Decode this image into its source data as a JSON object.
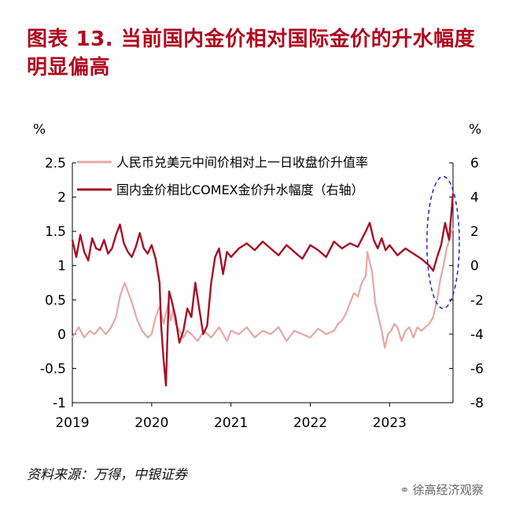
{
  "title": "图表 13. 当前国内金价相对国际金价的升水幅度明显偏高",
  "source": "资料来源：万得，中银证券",
  "watermark": "徐高经济观察",
  "colors": {
    "title": "#b0071f",
    "left_series": "#e9a6a6",
    "right_series": "#a50f26",
    "highlight": "#1f1fd0"
  },
  "chart_data": {
    "type": "line",
    "y_left": {
      "label": "%",
      "range": [
        -1,
        2.5
      ],
      "ticks": [
        "-1",
        "-0.5",
        "0",
        "0.5",
        "1",
        "1.5",
        "2",
        "2.5"
      ]
    },
    "y_right": {
      "label": "%",
      "range": [
        -8,
        6
      ],
      "ticks": [
        "-8",
        "-6",
        "-4",
        "-2",
        "0",
        "2",
        "4",
        "6"
      ]
    },
    "x": {
      "range": [
        2019,
        2023.8
      ],
      "ticks": [
        "2019",
        "2020",
        "2021",
        "2022",
        "2023"
      ]
    },
    "highlight_ellipse": {
      "x_range": [
        2023.55,
        2023.8
      ],
      "y_right_range": [
        -2.5,
        5.2
      ]
    },
    "series": [
      {
        "name": "人民币兑美元中间价相对上一日收盘价升值率",
        "axis": "left",
        "x": [
          2019.0,
          2019.08,
          2019.15,
          2019.22,
          2019.28,
          2019.35,
          2019.42,
          2019.48,
          2019.55,
          2019.6,
          2019.63,
          2019.66,
          2019.7,
          2019.74,
          2019.78,
          2019.82,
          2019.88,
          2019.95,
          2020.0,
          2020.05,
          2020.1,
          2020.15,
          2020.18,
          2020.21,
          2020.24,
          2020.27,
          2020.3,
          2020.35,
          2020.4,
          2020.45,
          2020.5,
          2020.58,
          2020.66,
          2020.75,
          2020.85,
          2020.95,
          2021.0,
          2021.1,
          2021.2,
          2021.3,
          2021.4,
          2021.5,
          2021.6,
          2021.7,
          2021.8,
          2021.9,
          2022.0,
          2022.1,
          2022.2,
          2022.3,
          2022.35,
          2022.4,
          2022.45,
          2022.5,
          2022.55,
          2022.6,
          2022.65,
          2022.7,
          2022.72,
          2022.75,
          2022.78,
          2022.82,
          2022.86,
          2022.9,
          2022.94,
          2022.98,
          2023.02,
          2023.06,
          2023.1,
          2023.15,
          2023.2,
          2023.25,
          2023.3,
          2023.35,
          2023.4,
          2023.45,
          2023.5,
          2023.55,
          2023.6,
          2023.64,
          2023.68,
          2023.72,
          2023.76,
          2023.8
        ],
        "y": [
          -0.05,
          0.1,
          -0.05,
          0.05,
          0.0,
          0.1,
          0.0,
          0.08,
          0.25,
          0.55,
          0.65,
          0.75,
          0.62,
          0.5,
          0.35,
          0.2,
          0.05,
          -0.05,
          0.0,
          0.25,
          0.4,
          0.15,
          0.3,
          0.45,
          0.2,
          0.35,
          0.15,
          0.05,
          -0.05,
          0.05,
          0.0,
          -0.1,
          0.05,
          -0.05,
          0.1,
          -0.1,
          0.05,
          0.0,
          0.1,
          -0.05,
          0.05,
          0.0,
          0.1,
          -0.1,
          0.05,
          0.0,
          -0.05,
          0.08,
          0.0,
          0.05,
          0.15,
          0.2,
          0.3,
          0.45,
          0.6,
          0.55,
          0.75,
          0.85,
          1.2,
          1.05,
          0.9,
          0.45,
          0.25,
          0.05,
          -0.2,
          0.0,
          0.05,
          0.15,
          0.1,
          -0.1,
          0.05,
          0.1,
          -0.05,
          0.1,
          0.05,
          0.1,
          0.15,
          0.25,
          0.5,
          0.8,
          1.0,
          1.25,
          1.4,
          1.55
        ]
      },
      {
        "name": "国内金价相比COMEX金价升水幅度（右轴）",
        "axis": "right",
        "x": [
          2019.0,
          2019.05,
          2019.1,
          2019.15,
          2019.2,
          2019.25,
          2019.3,
          2019.35,
          2019.4,
          2019.45,
          2019.5,
          2019.55,
          2019.6,
          2019.65,
          2019.7,
          2019.75,
          2019.8,
          2019.85,
          2019.9,
          2019.95,
          2020.0,
          2020.05,
          2020.1,
          2020.12,
          2020.15,
          2020.18,
          2020.2,
          2020.22,
          2020.25,
          2020.3,
          2020.35,
          2020.4,
          2020.45,
          2020.5,
          2020.55,
          2020.6,
          2020.65,
          2020.7,
          2020.75,
          2020.8,
          2020.85,
          2020.9,
          2020.95,
          2021.0,
          2021.1,
          2021.2,
          2021.3,
          2021.4,
          2021.5,
          2021.6,
          2021.7,
          2021.8,
          2021.9,
          2022.0,
          2022.1,
          2022.2,
          2022.3,
          2022.4,
          2022.5,
          2022.6,
          2022.7,
          2022.75,
          2022.8,
          2022.85,
          2022.9,
          2022.95,
          2023.0,
          2023.1,
          2023.2,
          2023.3,
          2023.4,
          2023.5,
          2023.55,
          2023.6,
          2023.65,
          2023.7,
          2023.75,
          2023.8
        ],
        "y": [
          1.5,
          0.5,
          1.8,
          0.8,
          0.3,
          1.6,
          1.0,
          0.9,
          1.5,
          0.7,
          1.0,
          1.8,
          2.4,
          1.3,
          0.8,
          0.5,
          1.1,
          1.9,
          1.0,
          0.7,
          1.2,
          0.4,
          -1.0,
          -3.5,
          -5.5,
          -7.0,
          -4.0,
          -1.5,
          -2.0,
          -3.0,
          -4.5,
          -3.8,
          -2.5,
          -3.0,
          -1.0,
          -2.5,
          -4.0,
          -3.5,
          -1.0,
          0.5,
          1.0,
          -0.5,
          0.8,
          0.5,
          1.0,
          1.3,
          0.9,
          1.4,
          1.0,
          0.6,
          1.2,
          0.8,
          0.4,
          1.2,
          0.9,
          0.5,
          1.4,
          1.0,
          1.3,
          1.1,
          2.0,
          2.5,
          1.5,
          1.0,
          1.6,
          0.9,
          1.2,
          0.6,
          1.0,
          0.7,
          0.4,
          0.0,
          -0.3,
          0.5,
          1.2,
          2.5,
          1.5,
          4.2
        ]
      }
    ]
  }
}
